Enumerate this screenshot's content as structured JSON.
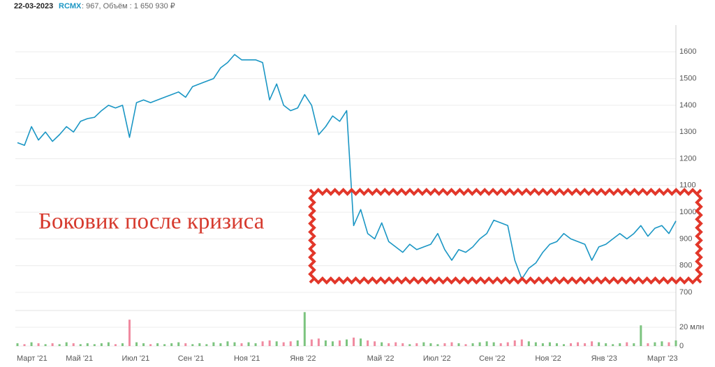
{
  "header": {
    "date": "22-03-2023",
    "ticker": "RCMX",
    "info": ": 967, Объём : 1 650 930 ₽"
  },
  "chart_data": {
    "type": "line",
    "color": "#1a96c4",
    "annotation": "Боковик после кризиса",
    "categories": [
      "Март '21",
      null,
      null,
      null,
      null,
      null,
      null,
      "Май '21",
      null,
      null,
      null,
      null,
      null,
      null,
      null,
      "Июл '21",
      null,
      null,
      null,
      null,
      null,
      null,
      null,
      "Сен '21",
      null,
      null,
      null,
      null,
      null,
      null,
      null,
      "Ноя '21",
      null,
      null,
      null,
      null,
      null,
      null,
      null,
      "Янв '22",
      null,
      null,
      null,
      null,
      null,
      null,
      null,
      null,
      null,
      null,
      "Май '22",
      null,
      null,
      null,
      null,
      null,
      null,
      null,
      "Июл '22",
      null,
      null,
      null,
      null,
      null,
      null,
      null,
      "Сен '22",
      null,
      null,
      null,
      null,
      null,
      null,
      null,
      "Ноя '22",
      null,
      null,
      null,
      null,
      null,
      null,
      null,
      "Янв '23",
      null,
      null,
      null,
      null,
      null,
      null,
      null,
      "Март '23",
      null,
      null,
      null,
      null
    ],
    "values": [
      1260,
      1250,
      1320,
      1270,
      1300,
      1265,
      1290,
      1320,
      1300,
      1340,
      1350,
      1355,
      1380,
      1400,
      1390,
      1400,
      1280,
      1410,
      1420,
      1410,
      1420,
      1430,
      1440,
      1450,
      1430,
      1470,
      1480,
      1490,
      1500,
      1540,
      1560,
      1590,
      1570,
      1570,
      1570,
      1560,
      1420,
      1480,
      1400,
      1380,
      1390,
      1440,
      1400,
      1290,
      1320,
      1360,
      1340,
      1380,
      950,
      1010,
      920,
      900,
      960,
      890,
      870,
      850,
      880,
      860,
      870,
      880,
      920,
      860,
      820,
      860,
      850,
      870,
      900,
      920,
      970,
      960,
      950,
      820,
      750,
      790,
      810,
      850,
      880,
      890,
      920,
      900,
      890,
      880,
      820,
      870,
      880,
      900,
      920,
      900,
      920,
      950,
      910,
      940,
      950,
      920,
      967
    ],
    "ylim": [
      700,
      1700
    ],
    "yticks": [
      700,
      800,
      900,
      1000,
      1100,
      1200,
      1300,
      1400,
      1500,
      1600
    ],
    "grid": true,
    "volume": {
      "up_color": "#7cc47f",
      "down_color": "#f08aa0",
      "ylim": [
        0,
        37
      ],
      "yticks": [
        0,
        {
          "value": 20,
          "label": "20 млн"
        }
      ],
      "values": [
        3,
        2,
        4,
        3,
        2,
        3,
        2,
        4,
        3,
        2,
        3,
        2,
        3,
        4,
        2,
        3,
        28,
        4,
        3,
        2,
        3,
        2,
        3,
        4,
        3,
        2,
        3,
        2,
        4,
        3,
        5,
        4,
        3,
        4,
        3,
        5,
        6,
        5,
        4,
        5,
        6,
        36,
        7,
        8,
        6,
        5,
        6,
        7,
        9,
        8,
        6,
        5,
        4,
        3,
        4,
        3,
        2,
        3,
        4,
        3,
        2,
        3,
        4,
        3,
        2,
        3,
        4,
        5,
        4,
        3,
        4,
        6,
        7,
        5,
        4,
        3,
        4,
        3,
        2,
        3,
        4,
        3,
        5,
        4,
        3,
        2,
        3,
        4,
        3,
        22,
        3,
        4,
        5,
        4,
        6
      ]
    }
  }
}
